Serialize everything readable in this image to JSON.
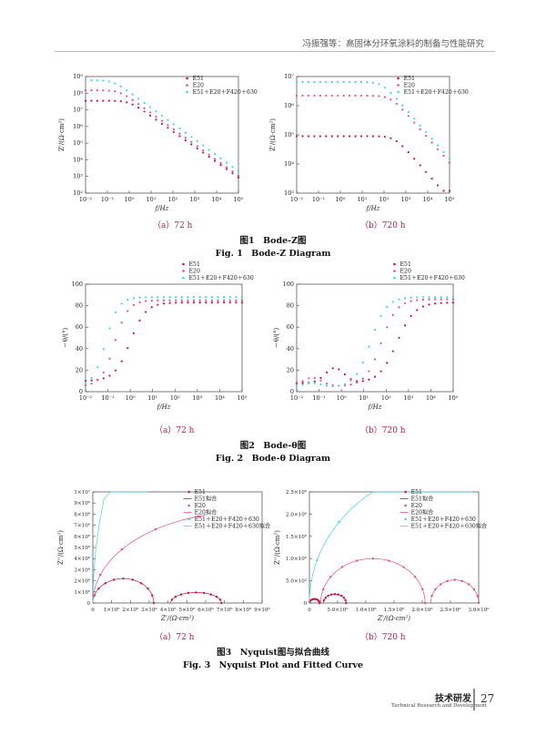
{
  "header": {
    "running_title": "冯振强等：高固体分环氧涂料的制备与性能研究"
  },
  "figures": [
    {
      "caption_cn": "图1　Bode-Z图",
      "caption_en": "Fig. 1　Bode-Z Diagram"
    },
    {
      "caption_cn": "图2　Bode-θ图",
      "caption_en": "Fig. 2　Bode-θ Diagram"
    },
    {
      "caption_cn": "图3　Nyquist图与拟合曲线",
      "caption_en": "Fig. 3　Nyquist Plot and Fitted Curve"
    }
  ],
  "footer": {
    "section_cn": "技术研发",
    "section_en": "Technical Research and Development",
    "page_number": "27"
  },
  "colors": {
    "E51": "#c8143c",
    "E20": "#e8507a",
    "E51+E20+F420+630": "#40d8e0",
    "subcaption": "#b41e45"
  },
  "chart_data": [
    {
      "id": "bodeZ72",
      "type": "scatter",
      "subcaption": "（a）72 h",
      "xlabel": "f/Hz",
      "ylabel": "Z'/(Ω·cm²)",
      "xscale": "log",
      "yscale": "log",
      "xlim": [
        0.01,
        100000
      ],
      "ylim": [
        100,
        1000000000
      ],
      "xticks": [
        "10⁻²",
        "10⁻¹",
        "10⁰",
        "10¹",
        "10²",
        "10³",
        "10⁴",
        "10⁵"
      ],
      "yticks": [
        "10²",
        "10³",
        "10⁴",
        "10⁵",
        "10⁶",
        "10⁷",
        "10⁸",
        "10⁹"
      ],
      "legend": [
        "E51",
        "E20",
        "E51＋E20＋F420＋630"
      ],
      "series": [
        {
          "name": "E51",
          "plateau": 35000000,
          "corner": 1.0,
          "slope": 0.92,
          "color": "#c8143c"
        },
        {
          "name": "E20",
          "plateau": 150000000,
          "corner": 0.35,
          "slope": 0.94,
          "color": "#e8507a"
        },
        {
          "name": "E51＋E20＋F420＋630",
          "plateau": 600000000,
          "corner": 0.18,
          "slope": 0.95,
          "color": "#40d8e0"
        }
      ]
    },
    {
      "id": "bodeZ720",
      "type": "scatter",
      "subcaption": "（b）720 h",
      "xlabel": "f/Hz",
      "ylabel": "Z'/(Ω·cm²)",
      "xscale": "log",
      "yscale": "log",
      "xlim": [
        0.01,
        100000
      ],
      "ylim": [
        1000,
        10000000
      ],
      "xticks": [
        "10⁻²",
        "10⁻¹",
        "10⁰",
        "10¹",
        "10²",
        "10³",
        "10⁴",
        "10⁵"
      ],
      "yticks": [
        "10³",
        "10⁴",
        "10⁵",
        "10⁶",
        "10⁷"
      ],
      "legend": [
        "E51",
        "E20",
        "E51＋E20＋F420＋630"
      ],
      "series": [
        {
          "name": "E51",
          "plateau": 90000,
          "corner": 300,
          "slope": 0.85,
          "color": "#c8143c"
        },
        {
          "name": "E20",
          "plateau": 2200000,
          "corner": 200,
          "slope": 0.85,
          "color": "#e8507a"
        },
        {
          "name": "E51＋E20＋F420＋630",
          "plateau": 6500000,
          "corner": 80,
          "slope": 0.85,
          "color": "#40d8e0"
        }
      ]
    },
    {
      "id": "bodeT72",
      "type": "scatter",
      "subcaption": "（a）72 h",
      "xlabel": "f/Hz",
      "ylabel": "－θ/(°)",
      "xscale": "log",
      "xlim": [
        0.01,
        100000
      ],
      "ylim": [
        0,
        100
      ],
      "xticks": [
        "10⁻²",
        "10⁻¹",
        "10⁰",
        "10¹",
        "10²",
        "10³",
        "10⁴",
        "10⁵"
      ],
      "yticks": [
        "0",
        "20",
        "40",
        "60",
        "80",
        "100"
      ],
      "legend": [
        "E51",
        "E20",
        "E51＋E20＋F420＋630"
      ],
      "series": [
        {
          "name": "E51",
          "start": 10,
          "end": 83,
          "mid": 1.0,
          "width": 0.35,
          "color": "#c8143c"
        },
        {
          "name": "E20",
          "start": 5,
          "end": 85,
          "mid": 0.2,
          "width": 0.3,
          "color": "#e8507a"
        },
        {
          "name": "E51＋E20＋F420＋630",
          "start": 5,
          "end": 88,
          "mid": 0.08,
          "width": 0.28,
          "color": "#40d8e0"
        }
      ]
    },
    {
      "id": "bodeT720",
      "type": "scatter",
      "subcaption": "（b）720 h",
      "xlabel": "f/Hz",
      "ylabel": "－θ/(°)",
      "xscale": "log",
      "xlim": [
        0.01,
        100000
      ],
      "ylim": [
        0,
        100
      ],
      "xticks": [
        "10⁻²",
        "10⁻¹",
        "10⁰",
        "10¹",
        "10²",
        "10³",
        "10⁴",
        "10⁵"
      ],
      "yticks": [
        "0",
        "20",
        "40",
        "60",
        "80",
        "100"
      ],
      "legend": [
        "E51",
        "E20",
        "E51＋E20＋F420＋630"
      ],
      "series": [
        {
          "name": "E51",
          "start": 8,
          "end": 83,
          "mid": 300,
          "width": 0.4,
          "bump": 14,
          "bumpAt": 0.5,
          "color": "#c8143c"
        },
        {
          "name": "E20",
          "start": 5,
          "end": 86,
          "mid": 60,
          "width": 0.35,
          "bump": 8,
          "bumpAt": 0.05,
          "color": "#e8507a"
        },
        {
          "name": "E51＋E20＋F420＋630",
          "start": 4,
          "end": 88,
          "mid": 20,
          "width": 0.35,
          "bump": 4,
          "bumpAt": 0.05,
          "color": "#40d8e0"
        }
      ]
    },
    {
      "id": "nyq72",
      "type": "scatter",
      "subcaption": "（a）72 h",
      "xlabel": "Z'/(Ω·cm²)",
      "ylabel": "Z''/(Ω·cm²)",
      "xlim": [
        0,
        10000000
      ],
      "ylim": [
        0,
        10000000
      ],
      "xticks": [
        "0",
        "1×10⁶",
        "2×10⁶",
        "3×10⁶",
        "4×10⁶",
        "5×10⁶",
        "6×10⁶",
        "7×10⁶",
        "8×10⁶",
        "9×10⁶"
      ],
      "yticks": [
        "0",
        "1×10⁶",
        "2×10⁶",
        "3×10⁶",
        "4×10⁶",
        "5×10⁶",
        "6×10⁶",
        "7×10⁶",
        "8×10⁶",
        "9×10⁶",
        "1×10⁷"
      ],
      "legend": [
        "E51",
        "E51拟合",
        "E20",
        "E20拟合",
        "E51＋E20＋F420＋630",
        "E51＋E20＋F420＋630拟合"
      ],
      "series": [
        {
          "name": "E51",
          "arcs": [
            [
              0,
              3600000,
              2200000
            ],
            [
              4600000,
              7600000,
              950000
            ]
          ],
          "color": "#c8143c"
        },
        {
          "name": "E20",
          "arc": [
            0,
            18000000,
            8200000
          ],
          "xmax": 7000000,
          "color": "#e8507a"
        },
        {
          "name": "E51＋E20＋F420＋630",
          "arc": [
            0,
            60000000,
            45000000
          ],
          "xmax": 3800000,
          "color": "#40d8e0"
        }
      ]
    },
    {
      "id": "nyq720",
      "type": "scatter",
      "subcaption": "（b）720 h",
      "xlabel": "Z'/(Ω·cm²)",
      "ylabel": "Z''/(Ω·cm²)",
      "xlim": [
        0,
        3000000
      ],
      "ylim": [
        0,
        2500000
      ],
      "xticks": [
        "0",
        "5.0×10⁵",
        "1.0×10⁶",
        "1.5×10⁶",
        "2.0×10⁶",
        "2.5×10⁶",
        "3.0×10⁶"
      ],
      "yticks": [
        "0",
        "5.0×10⁵",
        "1.0×10⁶",
        "1.5×10⁶",
        "2.0×10⁶",
        "2.5×10⁶"
      ],
      "legend": [
        "E51",
        "E51拟合",
        "E20",
        "E20拟合",
        "E51＋E20＋F420＋630",
        "E51＋E20＋F420＋630拟合"
      ],
      "series": [
        {
          "name": "E51",
          "arcs": [
            [
              0,
              180000,
              90000
            ],
            [
              250000,
              650000,
              200000
            ]
          ],
          "color": "#c8143c"
        },
        {
          "name": "E20",
          "arcs": [
            [
              200000,
              2050000,
              1000000
            ],
            [
              2150000,
              3000000,
              520000
            ]
          ],
          "color": "#e8507a"
        },
        {
          "name": "E51＋E20＋F420＋630",
          "arc": [
            0,
            5500000,
            3100000
          ],
          "xmax": 2900000,
          "color": "#40d8e0"
        }
      ]
    }
  ]
}
